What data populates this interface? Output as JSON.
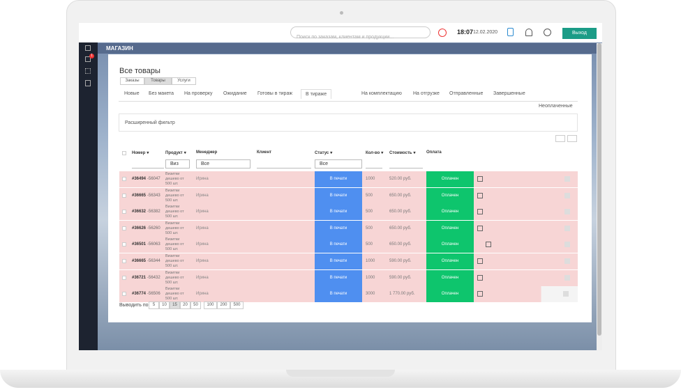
{
  "topbar": {
    "search_placeholder": "Поиск по заказам, клиентам и продукции...",
    "time": "18:07",
    "date": "12.02.2020",
    "logout": "Выход",
    "sidebar_badge": "1"
  },
  "section": "МАГАЗИН",
  "page_title": "Все товары",
  "type_tabs": [
    "Заказы",
    "Товары",
    "Услуги"
  ],
  "status_tabs": [
    "Новые",
    "Без макета",
    "На проверку",
    "Ожидание",
    "Готовы в тираж",
    "В тираже",
    "На комплектацию",
    "На отгрузке",
    "Отправленные",
    "Завершенные",
    "Неоплаченные"
  ],
  "filter": "Расширенный фильтр",
  "table": {
    "headers": [
      "Номер",
      "Продукт",
      "Менеджер",
      "Клиент",
      "Статус",
      "Кол-во",
      "Стоимость",
      "Оплата"
    ],
    "filters": {
      "product": "Виз",
      "manager": "Все",
      "status": "Все"
    },
    "rows": [
      {
        "number": "#36494",
        "sub": "-56047",
        "product": "Визитки дешево от 500 шт.",
        "manager": "Ирина",
        "status": "В печати",
        "qty": "1000",
        "cost": "520.00 руб.",
        "payment": "Оплачен"
      },
      {
        "number": "#36665",
        "sub": "-56343",
        "product": "Визитки дешево от 500 шт.",
        "manager": "Ирина",
        "status": "В печати",
        "qty": "500",
        "cost": "650.00 руб.",
        "payment": "Оплачен"
      },
      {
        "number": "#36632",
        "sub": "-56382",
        "product": "Визитки дешево от 500 шт.",
        "manager": "Ирина",
        "status": "В печати",
        "qty": "500",
        "cost": "650.00 руб.",
        "payment": "Оплачен"
      },
      {
        "number": "#36626",
        "sub": "-56260",
        "product": "Визитки дешево от 500 шт.",
        "manager": "Ирина",
        "status": "В печати",
        "qty": "500",
        "cost": "650.00 руб.",
        "payment": "Оплачен"
      },
      {
        "number": "#36501",
        "sub": "-56063",
        "product": "Визитки дешево от 500 шт.",
        "manager": "Ирина",
        "status": "В печати",
        "qty": "500",
        "cost": "650.00 руб.",
        "payment": "Оплачен"
      },
      {
        "number": "#36665",
        "sub": "-56344",
        "product": "Визитки дешево от 500 шт.",
        "manager": "Ирина",
        "status": "В печати",
        "qty": "1000",
        "cost": "590.00 руб.",
        "payment": "Оплачен"
      },
      {
        "number": "#36721",
        "sub": "-56432",
        "product": "Визитки дешево от 500 шт.",
        "manager": "Ирина",
        "status": "В печати",
        "qty": "1000",
        "cost": "590.00 руб.",
        "payment": "Оплачен"
      },
      {
        "number": "#36774",
        "sub": "-56506",
        "product": "Визитки дешево от 500 шт.",
        "manager": "Ирина",
        "status": "В печати",
        "qty": "3000",
        "cost": "1 770.00 руб.",
        "payment": "Оплачен"
      }
    ]
  },
  "pagination": {
    "label": "Выводить по",
    "sizes": [
      "5",
      "10",
      "15",
      "20",
      "50",
      "100",
      "200",
      "500"
    ]
  }
}
